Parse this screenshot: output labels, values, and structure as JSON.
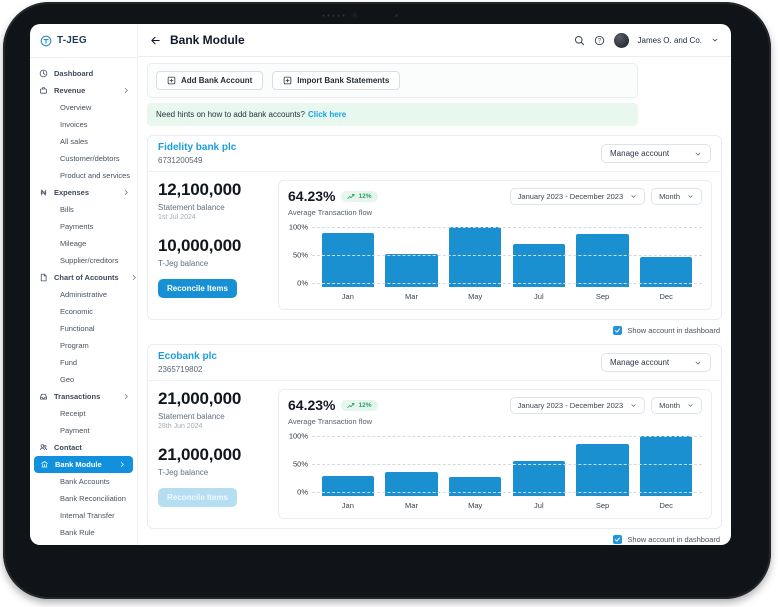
{
  "sidebar": {
    "logo_text": "T-JEG",
    "items": [
      {
        "label": "Dashboard"
      },
      {
        "label": "Revenue"
      },
      {
        "label": "Overview"
      },
      {
        "label": "Invoices"
      },
      {
        "label": "All sales"
      },
      {
        "label": "Customer/debtors"
      },
      {
        "label": "Product and services"
      },
      {
        "label": "Expenses"
      },
      {
        "label": "Bills"
      },
      {
        "label": "Payments"
      },
      {
        "label": "Mileage"
      },
      {
        "label": "Supplier/creditors"
      },
      {
        "label": "Chart of Accounts"
      },
      {
        "label": "Administrative"
      },
      {
        "label": "Economic"
      },
      {
        "label": "Functional"
      },
      {
        "label": "Program"
      },
      {
        "label": "Fund"
      },
      {
        "label": "Geo"
      },
      {
        "label": "Transactions"
      },
      {
        "label": "Receipt"
      },
      {
        "label": "Payment"
      },
      {
        "label": "Contact"
      },
      {
        "label": "Bank Module"
      },
      {
        "label": "Bank Accounts"
      },
      {
        "label": "Bank Reconciliation"
      },
      {
        "label": "Internal Transfer"
      },
      {
        "label": "Bank Rule"
      }
    ]
  },
  "header": {
    "title": "Bank Module",
    "account_switcher": "James O. and Co."
  },
  "toolbar": {
    "add_button": "Add Bank Account",
    "import_button": "Import Bank Statements"
  },
  "hint": {
    "text": "Need hints on how to add bank accounts?",
    "link": "Click here"
  },
  "accounts": [
    {
      "name": "Fidelity bank plc",
      "number": "6731200549",
      "manage_label": "Manage account",
      "statement_balance": "12,100,000",
      "statement_label": "Statement balance",
      "statement_date": "1st Jul 2024",
      "tjeg_balance": "10,000,000",
      "tjeg_label": "T-Jeg balance",
      "reconcile_label": "Reconcile Items",
      "percent": "64.23%",
      "delta": "12%",
      "flow_label": "Average Transaction flow",
      "period": "January 2023 - December 2023",
      "granularity": "Month",
      "checkbox_label": "Show account in dashboard"
    },
    {
      "name": "Ecobank plc",
      "number": "2365719802",
      "manage_label": "Manage account",
      "statement_balance": "21,000,000",
      "statement_label": "Statement balance",
      "statement_date": "28th Jun 2024",
      "tjeg_balance": "21,000,000",
      "tjeg_label": "T-Jeg balance",
      "reconcile_label": "Reconcile Items",
      "percent": "64.23%",
      "delta": "12%",
      "flow_label": "Average Transaction flow",
      "period": "January 2023 - December 2023",
      "granularity": "Month",
      "checkbox_label": "Show account in dashboard"
    }
  ],
  "chart_data": [
    {
      "type": "bar",
      "title": "Average Transaction flow",
      "account": "Fidelity bank plc",
      "categories": [
        "Jan",
        "Mar",
        "May",
        "Jul",
        "Sep",
        "Dec"
      ],
      "values": [
        90,
        52,
        100,
        70,
        87,
        46
      ],
      "yticks": [
        "100%",
        "50%",
        "0%"
      ],
      "ylim": [
        0,
        100
      ],
      "grid": "dashed-horizontal",
      "bar_color": "#1a90d0"
    },
    {
      "type": "bar",
      "title": "Average Transaction flow",
      "account": "Ecobank plc",
      "categories": [
        "Jan",
        "Mar",
        "May",
        "Jul",
        "Sep",
        "Dec"
      ],
      "values": [
        28,
        35,
        27,
        55,
        85,
        100
      ],
      "yticks": [
        "100%",
        "50%",
        "0%"
      ],
      "ylim": [
        0,
        100
      ],
      "grid": "dashed-horizontal",
      "bar_color": "#1a90d0"
    }
  ],
  "colors": {
    "primary": "#1791d3",
    "nav_active": "#1191dd",
    "link": "#1c9ddb",
    "success_text": "#27a567",
    "success_bg": "#e6f6ec",
    "hint_bg": "#e8f8ef"
  }
}
